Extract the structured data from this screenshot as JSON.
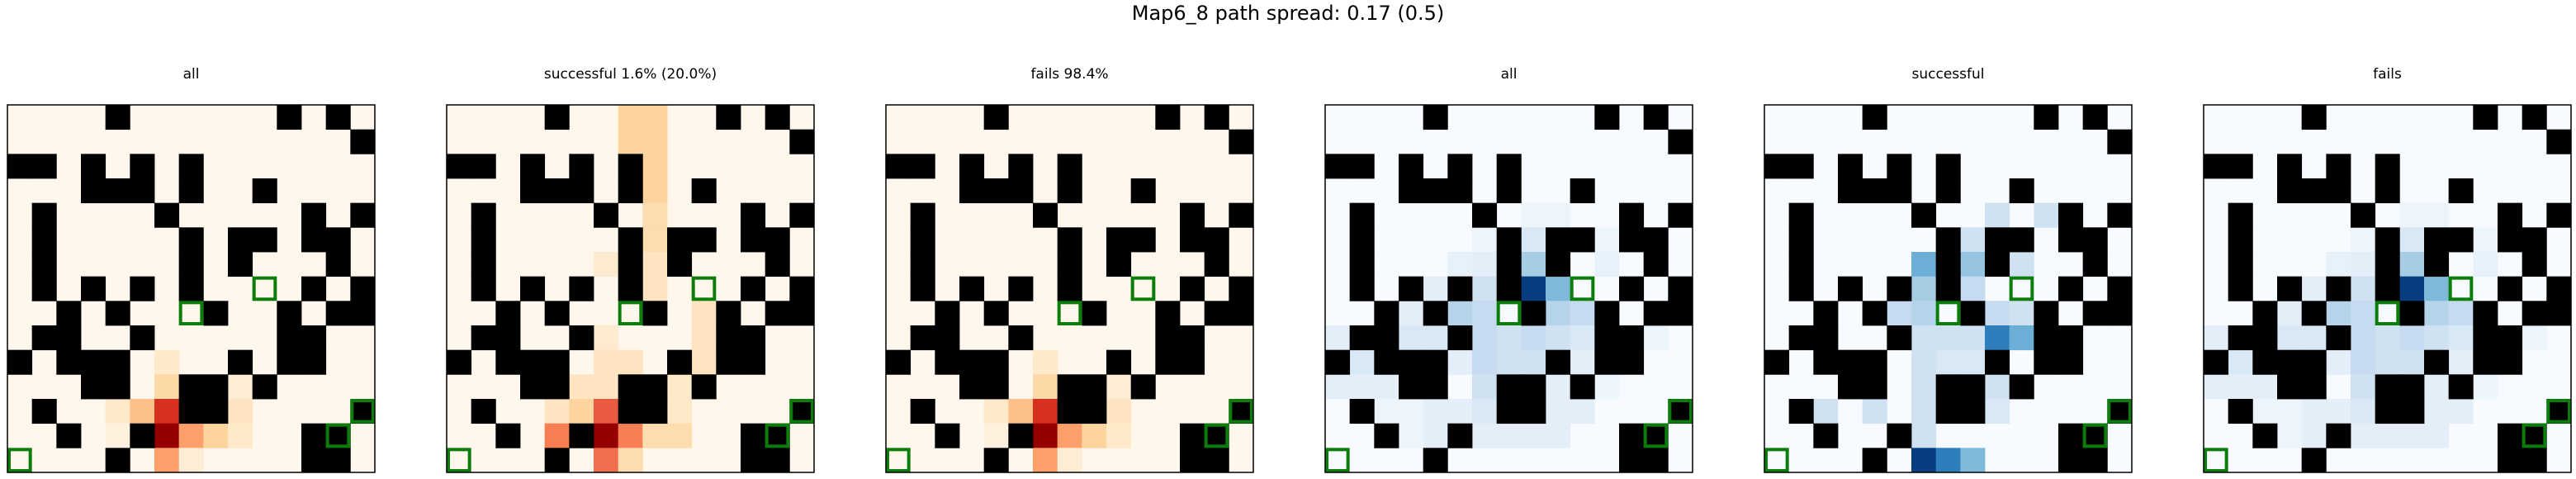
{
  "chart_data": {
    "type": "heatmap",
    "title": "Map6_8 path spread: 0.17 (0.5)",
    "grid_size": [
      15,
      15
    ],
    "colors": {
      "wall": "#000000",
      "goal_outline": "#0a7d0a",
      "frame": "#000000"
    },
    "walls": [
      [
        0,
        4
      ],
      [
        0,
        11
      ],
      [
        0,
        13
      ],
      [
        1,
        14
      ],
      [
        2,
        0
      ],
      [
        2,
        1
      ],
      [
        2,
        3
      ],
      [
        2,
        5
      ],
      [
        2,
        7
      ],
      [
        3,
        3
      ],
      [
        3,
        4
      ],
      [
        3,
        5
      ],
      [
        3,
        7
      ],
      [
        3,
        10
      ],
      [
        4,
        1
      ],
      [
        4,
        6
      ],
      [
        4,
        12
      ],
      [
        4,
        14
      ],
      [
        5,
        1
      ],
      [
        5,
        7
      ],
      [
        5,
        9
      ],
      [
        5,
        10
      ],
      [
        5,
        12
      ],
      [
        5,
        13
      ],
      [
        6,
        1
      ],
      [
        6,
        7
      ],
      [
        6,
        9
      ],
      [
        6,
        13
      ],
      [
        7,
        1
      ],
      [
        7,
        3
      ],
      [
        7,
        5
      ],
      [
        7,
        7
      ],
      [
        7,
        12
      ],
      [
        7,
        14
      ],
      [
        8,
        2
      ],
      [
        8,
        4
      ],
      [
        8,
        8
      ],
      [
        8,
        11
      ],
      [
        8,
        13
      ],
      [
        8,
        14
      ],
      [
        9,
        1
      ],
      [
        9,
        2
      ],
      [
        9,
        5
      ],
      [
        9,
        11
      ],
      [
        9,
        12
      ],
      [
        10,
        0
      ],
      [
        10,
        2
      ],
      [
        10,
        3
      ],
      [
        10,
        4
      ],
      [
        10,
        9
      ],
      [
        10,
        11
      ],
      [
        10,
        12
      ],
      [
        11,
        3
      ],
      [
        11,
        4
      ],
      [
        11,
        7
      ],
      [
        11,
        8
      ],
      [
        11,
        10
      ],
      [
        12,
        1
      ],
      [
        12,
        7
      ],
      [
        12,
        8
      ],
      [
        12,
        14
      ],
      [
        13,
        2
      ],
      [
        13,
        5
      ],
      [
        13,
        12
      ],
      [
        13,
        13
      ],
      [
        14,
        4
      ],
      [
        14,
        12
      ],
      [
        14,
        13
      ]
    ],
    "goals": [
      [
        7,
        10
      ],
      [
        8,
        7
      ],
      [
        12,
        14
      ],
      [
        13,
        13
      ],
      [
        14,
        0
      ]
    ],
    "panels": [
      {
        "title": "all",
        "colormap": "Oranges",
        "cells": [
          [
            10,
            6,
            0.12
          ],
          [
            11,
            6,
            0.22
          ],
          [
            11,
            9,
            0.08
          ],
          [
            12,
            4,
            0.12
          ],
          [
            12,
            5,
            0.35
          ],
          [
            12,
            6,
            0.75
          ],
          [
            12,
            9,
            0.15
          ],
          [
            13,
            4,
            0.05
          ],
          [
            13,
            6,
            0.95
          ],
          [
            13,
            7,
            0.45
          ],
          [
            13,
            8,
            0.25
          ],
          [
            13,
            9,
            0.12
          ],
          [
            14,
            6,
            0.45
          ],
          [
            14,
            7,
            0.08
          ]
        ]
      },
      {
        "title": "successful 1.6% (20.0%)",
        "colormap": "Oranges",
        "cells": [
          [
            0,
            7,
            0.25
          ],
          [
            0,
            8,
            0.25
          ],
          [
            1,
            7,
            0.25
          ],
          [
            1,
            8,
            0.25
          ],
          [
            2,
            8,
            0.25
          ],
          [
            3,
            8,
            0.25
          ],
          [
            4,
            8,
            0.2
          ],
          [
            5,
            8,
            0.2
          ],
          [
            6,
            6,
            0.1
          ],
          [
            6,
            8,
            0.15
          ],
          [
            6,
            9,
            0.15
          ],
          [
            7,
            8,
            0.15
          ],
          [
            8,
            8,
            0.15
          ],
          [
            8,
            10,
            0.15
          ],
          [
            9,
            6,
            0.1
          ],
          [
            9,
            10,
            0.15
          ],
          [
            10,
            6,
            0.15
          ],
          [
            10,
            7,
            0.15
          ],
          [
            10,
            10,
            0.15
          ],
          [
            11,
            5,
            0.15
          ],
          [
            11,
            6,
            0.15
          ],
          [
            11,
            9,
            0.12
          ],
          [
            12,
            4,
            0.15
          ],
          [
            12,
            5,
            0.25
          ],
          [
            12,
            6,
            0.65
          ],
          [
            12,
            9,
            0.12
          ],
          [
            13,
            4,
            0.55
          ],
          [
            13,
            6,
            0.95
          ],
          [
            13,
            7,
            0.55
          ],
          [
            13,
            8,
            0.2
          ],
          [
            13,
            9,
            0.2
          ],
          [
            14,
            6,
            0.6
          ],
          [
            14,
            7,
            0.2
          ]
        ]
      },
      {
        "title": "fails 98.4%",
        "colormap": "Oranges",
        "cells": [
          [
            10,
            6,
            0.12
          ],
          [
            11,
            6,
            0.22
          ],
          [
            11,
            9,
            0.08
          ],
          [
            12,
            4,
            0.12
          ],
          [
            12,
            5,
            0.35
          ],
          [
            12,
            6,
            0.75
          ],
          [
            12,
            9,
            0.15
          ],
          [
            13,
            4,
            0.05
          ],
          [
            13,
            6,
            0.95
          ],
          [
            13,
            7,
            0.45
          ],
          [
            13,
            8,
            0.25
          ],
          [
            13,
            9,
            0.12
          ],
          [
            14,
            6,
            0.45
          ],
          [
            14,
            7,
            0.08
          ]
        ]
      },
      {
        "title": "all",
        "colormap": "Blues",
        "cells": [
          [
            4,
            8,
            0.05
          ],
          [
            4,
            9,
            0.05
          ],
          [
            5,
            6,
            0.05
          ],
          [
            5,
            8,
            0.15
          ],
          [
            5,
            11,
            0.05
          ],
          [
            6,
            5,
            0.08
          ],
          [
            6,
            6,
            0.1
          ],
          [
            6,
            8,
            0.35
          ],
          [
            6,
            9,
            0.2
          ],
          [
            6,
            11,
            0.08
          ],
          [
            7,
            4,
            0.1
          ],
          [
            7,
            5,
            0.12
          ],
          [
            7,
            6,
            0.2
          ],
          [
            7,
            8,
            0.95
          ],
          [
            7,
            9,
            0.45
          ],
          [
            8,
            3,
            0.1
          ],
          [
            8,
            5,
            0.3
          ],
          [
            8,
            6,
            0.25
          ],
          [
            8,
            9,
            0.3
          ],
          [
            8,
            10,
            0.25
          ],
          [
            9,
            0,
            0.1
          ],
          [
            9,
            3,
            0.15
          ],
          [
            9,
            4,
            0.15
          ],
          [
            9,
            6,
            0.25
          ],
          [
            9,
            7,
            0.2
          ],
          [
            9,
            8,
            0.25
          ],
          [
            9,
            9,
            0.2
          ],
          [
            9,
            10,
            0.15
          ],
          [
            9,
            13,
            0.05
          ],
          [
            10,
            1,
            0.15
          ],
          [
            10,
            5,
            0.1
          ],
          [
            10,
            6,
            0.25
          ],
          [
            10,
            7,
            0.2
          ],
          [
            10,
            8,
            0.2
          ],
          [
            10,
            10,
            0.1
          ],
          [
            11,
            0,
            0.1
          ],
          [
            11,
            1,
            0.1
          ],
          [
            11,
            2,
            0.1
          ],
          [
            11,
            6,
            0.2
          ],
          [
            11,
            9,
            0.1
          ],
          [
            11,
            11,
            0.05
          ],
          [
            12,
            2,
            0.05
          ],
          [
            12,
            3,
            0.05
          ],
          [
            12,
            4,
            0.1
          ],
          [
            12,
            5,
            0.1
          ],
          [
            12,
            6,
            0.15
          ],
          [
            12,
            9,
            0.1
          ],
          [
            12,
            10,
            0.1
          ],
          [
            13,
            3,
            0.05
          ],
          [
            13,
            4,
            0.1
          ],
          [
            13,
            6,
            0.1
          ],
          [
            13,
            7,
            0.1
          ],
          [
            13,
            8,
            0.1
          ],
          [
            13,
            9,
            0.1
          ]
        ]
      },
      {
        "title": "successful",
        "colormap": "Blues",
        "cells": [
          [
            4,
            9,
            0.2
          ],
          [
            4,
            11,
            0.2
          ],
          [
            5,
            8,
            0.2
          ],
          [
            6,
            6,
            0.5
          ],
          [
            6,
            7,
            0.55
          ],
          [
            6,
            8,
            0.4
          ],
          [
            6,
            9,
            0.3
          ],
          [
            6,
            10,
            0.2
          ],
          [
            7,
            5,
            0.2
          ],
          [
            7,
            6,
            0.35
          ],
          [
            7,
            7,
            0.3
          ],
          [
            7,
            8,
            0.25
          ],
          [
            8,
            5,
            0.25
          ],
          [
            8,
            6,
            0.3
          ],
          [
            8,
            9,
            0.25
          ],
          [
            8,
            10,
            0.2
          ],
          [
            9,
            6,
            0.2
          ],
          [
            9,
            7,
            0.2
          ],
          [
            9,
            8,
            0.2
          ],
          [
            9,
            9,
            0.7
          ],
          [
            9,
            10,
            0.5
          ],
          [
            9,
            11,
            0.5
          ],
          [
            10,
            6,
            0.2
          ],
          [
            10,
            7,
            0.15
          ],
          [
            10,
            8,
            0.15
          ],
          [
            11,
            6,
            0.2
          ],
          [
            11,
            9,
            0.2
          ],
          [
            12,
            2,
            0.2
          ],
          [
            12,
            4,
            0.2
          ],
          [
            12,
            6,
            0.2
          ],
          [
            12,
            9,
            0.15
          ],
          [
            13,
            6,
            0.2
          ],
          [
            14,
            4,
            0.2
          ],
          [
            14,
            6,
            0.95
          ],
          [
            14,
            7,
            0.7
          ],
          [
            14,
            8,
            0.45
          ]
        ]
      },
      {
        "title": "fails",
        "colormap": "Blues",
        "cells": [
          [
            4,
            8,
            0.05
          ],
          [
            4,
            9,
            0.05
          ],
          [
            5,
            6,
            0.05
          ],
          [
            5,
            8,
            0.15
          ],
          [
            5,
            11,
            0.05
          ],
          [
            6,
            5,
            0.08
          ],
          [
            6,
            6,
            0.1
          ],
          [
            6,
            8,
            0.35
          ],
          [
            6,
            9,
            0.2
          ],
          [
            6,
            11,
            0.08
          ],
          [
            7,
            4,
            0.1
          ],
          [
            7,
            5,
            0.12
          ],
          [
            7,
            6,
            0.2
          ],
          [
            7,
            8,
            0.95
          ],
          [
            7,
            9,
            0.45
          ],
          [
            8,
            3,
            0.1
          ],
          [
            8,
            5,
            0.3
          ],
          [
            8,
            6,
            0.25
          ],
          [
            8,
            9,
            0.3
          ],
          [
            8,
            10,
            0.25
          ],
          [
            9,
            0,
            0.1
          ],
          [
            9,
            3,
            0.15
          ],
          [
            9,
            4,
            0.15
          ],
          [
            9,
            6,
            0.25
          ],
          [
            9,
            7,
            0.2
          ],
          [
            9,
            8,
            0.25
          ],
          [
            9,
            9,
            0.2
          ],
          [
            9,
            10,
            0.15
          ],
          [
            9,
            13,
            0.05
          ],
          [
            10,
            1,
            0.15
          ],
          [
            10,
            5,
            0.1
          ],
          [
            10,
            6,
            0.25
          ],
          [
            10,
            7,
            0.2
          ],
          [
            10,
            8,
            0.2
          ],
          [
            10,
            10,
            0.1
          ],
          [
            11,
            0,
            0.1
          ],
          [
            11,
            1,
            0.1
          ],
          [
            11,
            2,
            0.1
          ],
          [
            11,
            6,
            0.2
          ],
          [
            11,
            9,
            0.1
          ],
          [
            11,
            11,
            0.05
          ],
          [
            12,
            2,
            0.05
          ],
          [
            12,
            3,
            0.05
          ],
          [
            12,
            4,
            0.1
          ],
          [
            12,
            5,
            0.1
          ],
          [
            12,
            6,
            0.15
          ],
          [
            12,
            9,
            0.1
          ],
          [
            12,
            10,
            0.1
          ],
          [
            13,
            3,
            0.05
          ],
          [
            13,
            4,
            0.1
          ],
          [
            13,
            6,
            0.1
          ],
          [
            13,
            7,
            0.1
          ],
          [
            13,
            8,
            0.1
          ],
          [
            13,
            9,
            0.1
          ]
        ]
      }
    ]
  }
}
